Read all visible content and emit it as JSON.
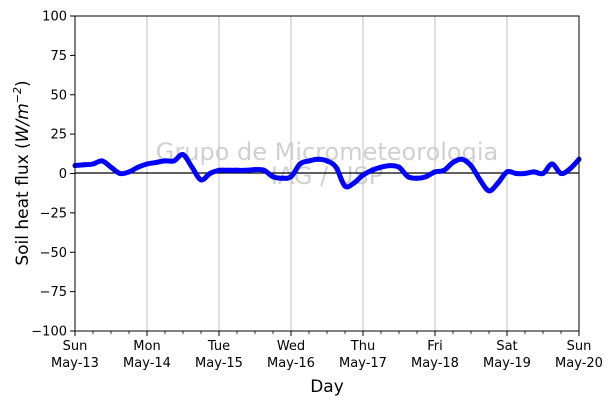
{
  "chart_data": {
    "type": "line",
    "xlabel": "Day",
    "ylabel": "Soil heat flux (W/m⁻²)",
    "ylabel_prefix": "Soil heat flux (",
    "ylabel_unit": "W/m",
    "ylabel_exp": "−2",
    "ylabel_suffix": ")",
    "watermark": [
      "Grupo de Micrometeorologia",
      "IAG / USP"
    ],
    "ylim": [
      -100,
      100
    ],
    "yticks": [
      -100,
      -75,
      -50,
      -25,
      0,
      25,
      50,
      75,
      100
    ],
    "xlim": [
      "2018-05-13",
      "2018-05-20"
    ],
    "xticks": [
      {
        "day": "Sun",
        "date": "May-13"
      },
      {
        "day": "Mon",
        "date": "May-14"
      },
      {
        "day": "Tue",
        "date": "May-15"
      },
      {
        "day": "Wed",
        "date": "May-16"
      },
      {
        "day": "Thu",
        "date": "May-17"
      },
      {
        "day": "Fri",
        "date": "May-18"
      },
      {
        "day": "Sat",
        "date": "May-19"
      },
      {
        "day": "Sun",
        "date": "May-20"
      }
    ],
    "minor_ticks_per_day": 4,
    "grid": "vertical major",
    "zero_line": true,
    "series_color": "#0000ff",
    "series": [
      {
        "x": [
          "2018-05-13 00:00",
          "2018-05-13 03:00",
          "2018-05-13 06:00",
          "2018-05-13 09:00",
          "2018-05-13 12:00",
          "2018-05-13 15:00",
          "2018-05-13 18:00",
          "2018-05-13 21:00",
          "2018-05-14 00:00",
          "2018-05-14 03:00",
          "2018-05-14 06:00",
          "2018-05-14 09:00",
          "2018-05-14 12:00",
          "2018-05-14 15:00",
          "2018-05-14 18:00",
          "2018-05-14 21:00",
          "2018-05-15 00:00",
          "2018-05-15 03:00",
          "2018-05-15 06:00",
          "2018-05-15 09:00",
          "2018-05-15 12:00",
          "2018-05-15 15:00",
          "2018-05-15 18:00",
          "2018-05-15 21:00",
          "2018-05-16 00:00",
          "2018-05-16 03:00",
          "2018-05-16 06:00",
          "2018-05-16 09:00",
          "2018-05-16 12:00",
          "2018-05-16 15:00",
          "2018-05-16 18:00",
          "2018-05-16 21:00",
          "2018-05-17 00:00",
          "2018-05-17 03:00",
          "2018-05-17 06:00",
          "2018-05-17 09:00",
          "2018-05-17 12:00",
          "2018-05-17 15:00",
          "2018-05-17 18:00",
          "2018-05-17 21:00",
          "2018-05-18 00:00",
          "2018-05-18 03:00",
          "2018-05-18 06:00",
          "2018-05-18 09:00",
          "2018-05-18 12:00",
          "2018-05-18 15:00",
          "2018-05-18 18:00",
          "2018-05-18 21:00",
          "2018-05-19 00:00",
          "2018-05-19 03:00",
          "2018-05-19 06:00",
          "2018-05-19 09:00",
          "2018-05-19 12:00",
          "2018-05-19 15:00",
          "2018-05-19 18:00",
          "2018-05-19 21:00",
          "2018-05-20 00:00"
        ],
        "y": [
          5,
          5.5,
          6,
          8,
          4,
          0,
          1,
          4,
          6,
          7,
          8,
          8,
          12,
          4,
          -4,
          0,
          2,
          2,
          2,
          2,
          2.5,
          2,
          -2,
          -3,
          -2,
          6,
          8,
          9,
          8,
          4,
          -8,
          -6,
          -1,
          2,
          4,
          5,
          4,
          -2,
          -3,
          -2,
          1,
          2,
          7,
          9,
          5,
          -4,
          -11,
          -6,
          1,
          0,
          0,
          1,
          0,
          6,
          0,
          3,
          9
        ]
      }
    ]
  }
}
